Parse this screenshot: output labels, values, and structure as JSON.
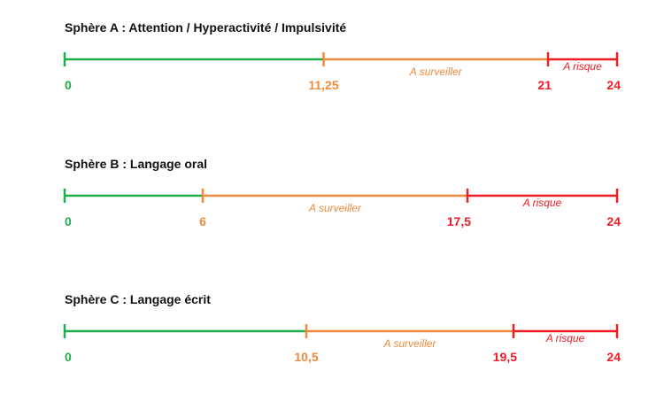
{
  "colors": {
    "green": "#1fae4b",
    "orange": "#f08a3c",
    "red": "#ee1c25"
  },
  "scales": [
    {
      "title": "Sphère A : Attention / Hyperactivité / Impulsivité",
      "max": 24,
      "thresholds": [
        0,
        11.25,
        21,
        24
      ],
      "labels": [
        "0",
        "11,25",
        "21",
        "24"
      ],
      "zones": [
        null,
        "A surveiller",
        "A risque"
      ]
    },
    {
      "title": "Sphère B : Langage oral",
      "max": 24,
      "thresholds": [
        0,
        6,
        17.5,
        24
      ],
      "labels": [
        "0",
        "6",
        "17,5",
        "24"
      ],
      "zones": [
        null,
        "A surveiller",
        "A risque"
      ]
    },
    {
      "title": "Sphère C : Langage écrit",
      "max": 24,
      "thresholds": [
        0,
        10.5,
        19.5,
        24
      ],
      "labels": [
        "0",
        "10,5",
        "19,5",
        "24"
      ],
      "zones": [
        null,
        "A surveiller",
        "A risque"
      ]
    }
  ]
}
